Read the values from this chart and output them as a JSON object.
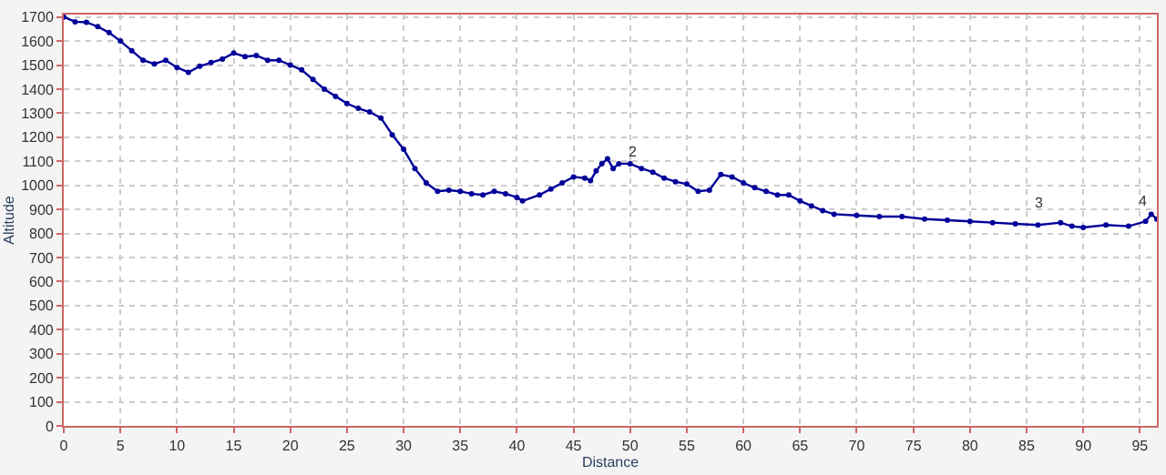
{
  "chart_data": {
    "type": "line",
    "xlabel": "Distance",
    "ylabel": "Altitude",
    "x": [
      0,
      1,
      2,
      3,
      4,
      5,
      6,
      7,
      8,
      9,
      10,
      11,
      12,
      13,
      14,
      15,
      16,
      17,
      18,
      19,
      20,
      21,
      22,
      23,
      24,
      25,
      26,
      27,
      28,
      29,
      30,
      31,
      32,
      33,
      34,
      35,
      36,
      37,
      38,
      39,
      40,
      40.5,
      42,
      43,
      44,
      45,
      46,
      46.5,
      47,
      47.5,
      48,
      48.5,
      49,
      50,
      51,
      52,
      53,
      54,
      55,
      56,
      57,
      58,
      59,
      60,
      61,
      62,
      63,
      64,
      65,
      66,
      67,
      68,
      70,
      72,
      74,
      76,
      78,
      80,
      82,
      84,
      86,
      88,
      89,
      90,
      92,
      94,
      95.5,
      96,
      96.5
    ],
    "series": [
      {
        "color": "#000099",
        "values": [
          1700,
          1680,
          1678,
          1660,
          1635,
          1600,
          1560,
          1520,
          1505,
          1520,
          1490,
          1470,
          1495,
          1510,
          1525,
          1550,
          1535,
          1540,
          1520,
          1520,
          1500,
          1480,
          1440,
          1400,
          1370,
          1340,
          1320,
          1305,
          1280,
          1210,
          1150,
          1070,
          1010,
          975,
          980,
          975,
          965,
          960,
          975,
          965,
          950,
          935,
          960,
          985,
          1010,
          1035,
          1030,
          1020,
          1060,
          1090,
          1110,
          1070,
          1090,
          1090,
          1070,
          1055,
          1030,
          1015,
          1005,
          975,
          980,
          1045,
          1035,
          1010,
          990,
          975,
          960,
          960,
          935,
          915,
          895,
          880,
          875,
          870,
          870,
          860,
          855,
          850,
          845,
          840,
          835,
          845,
          830,
          825,
          835,
          830,
          850,
          880,
          860
        ]
      }
    ],
    "xlim": [
      0,
      96.5
    ],
    "ylim": [
      0,
      1710
    ],
    "xticks": [
      0,
      5,
      10,
      15,
      20,
      25,
      30,
      35,
      40,
      45,
      50,
      55,
      60,
      65,
      70,
      75,
      80,
      85,
      90,
      95
    ],
    "yticks": [
      0,
      100,
      200,
      300,
      400,
      500,
      600,
      700,
      800,
      900,
      1000,
      1100,
      1200,
      1300,
      1400,
      1500,
      1600,
      1700
    ],
    "grid": true,
    "marker": "circle",
    "line_style": "solid",
    "annotations": [
      {
        "text": "2",
        "x": 50.3,
        "y": 1088
      },
      {
        "text": "3",
        "x": 86.1,
        "y": 875
      },
      {
        "text": "4",
        "x": 95.3,
        "y": 882
      }
    ]
  }
}
